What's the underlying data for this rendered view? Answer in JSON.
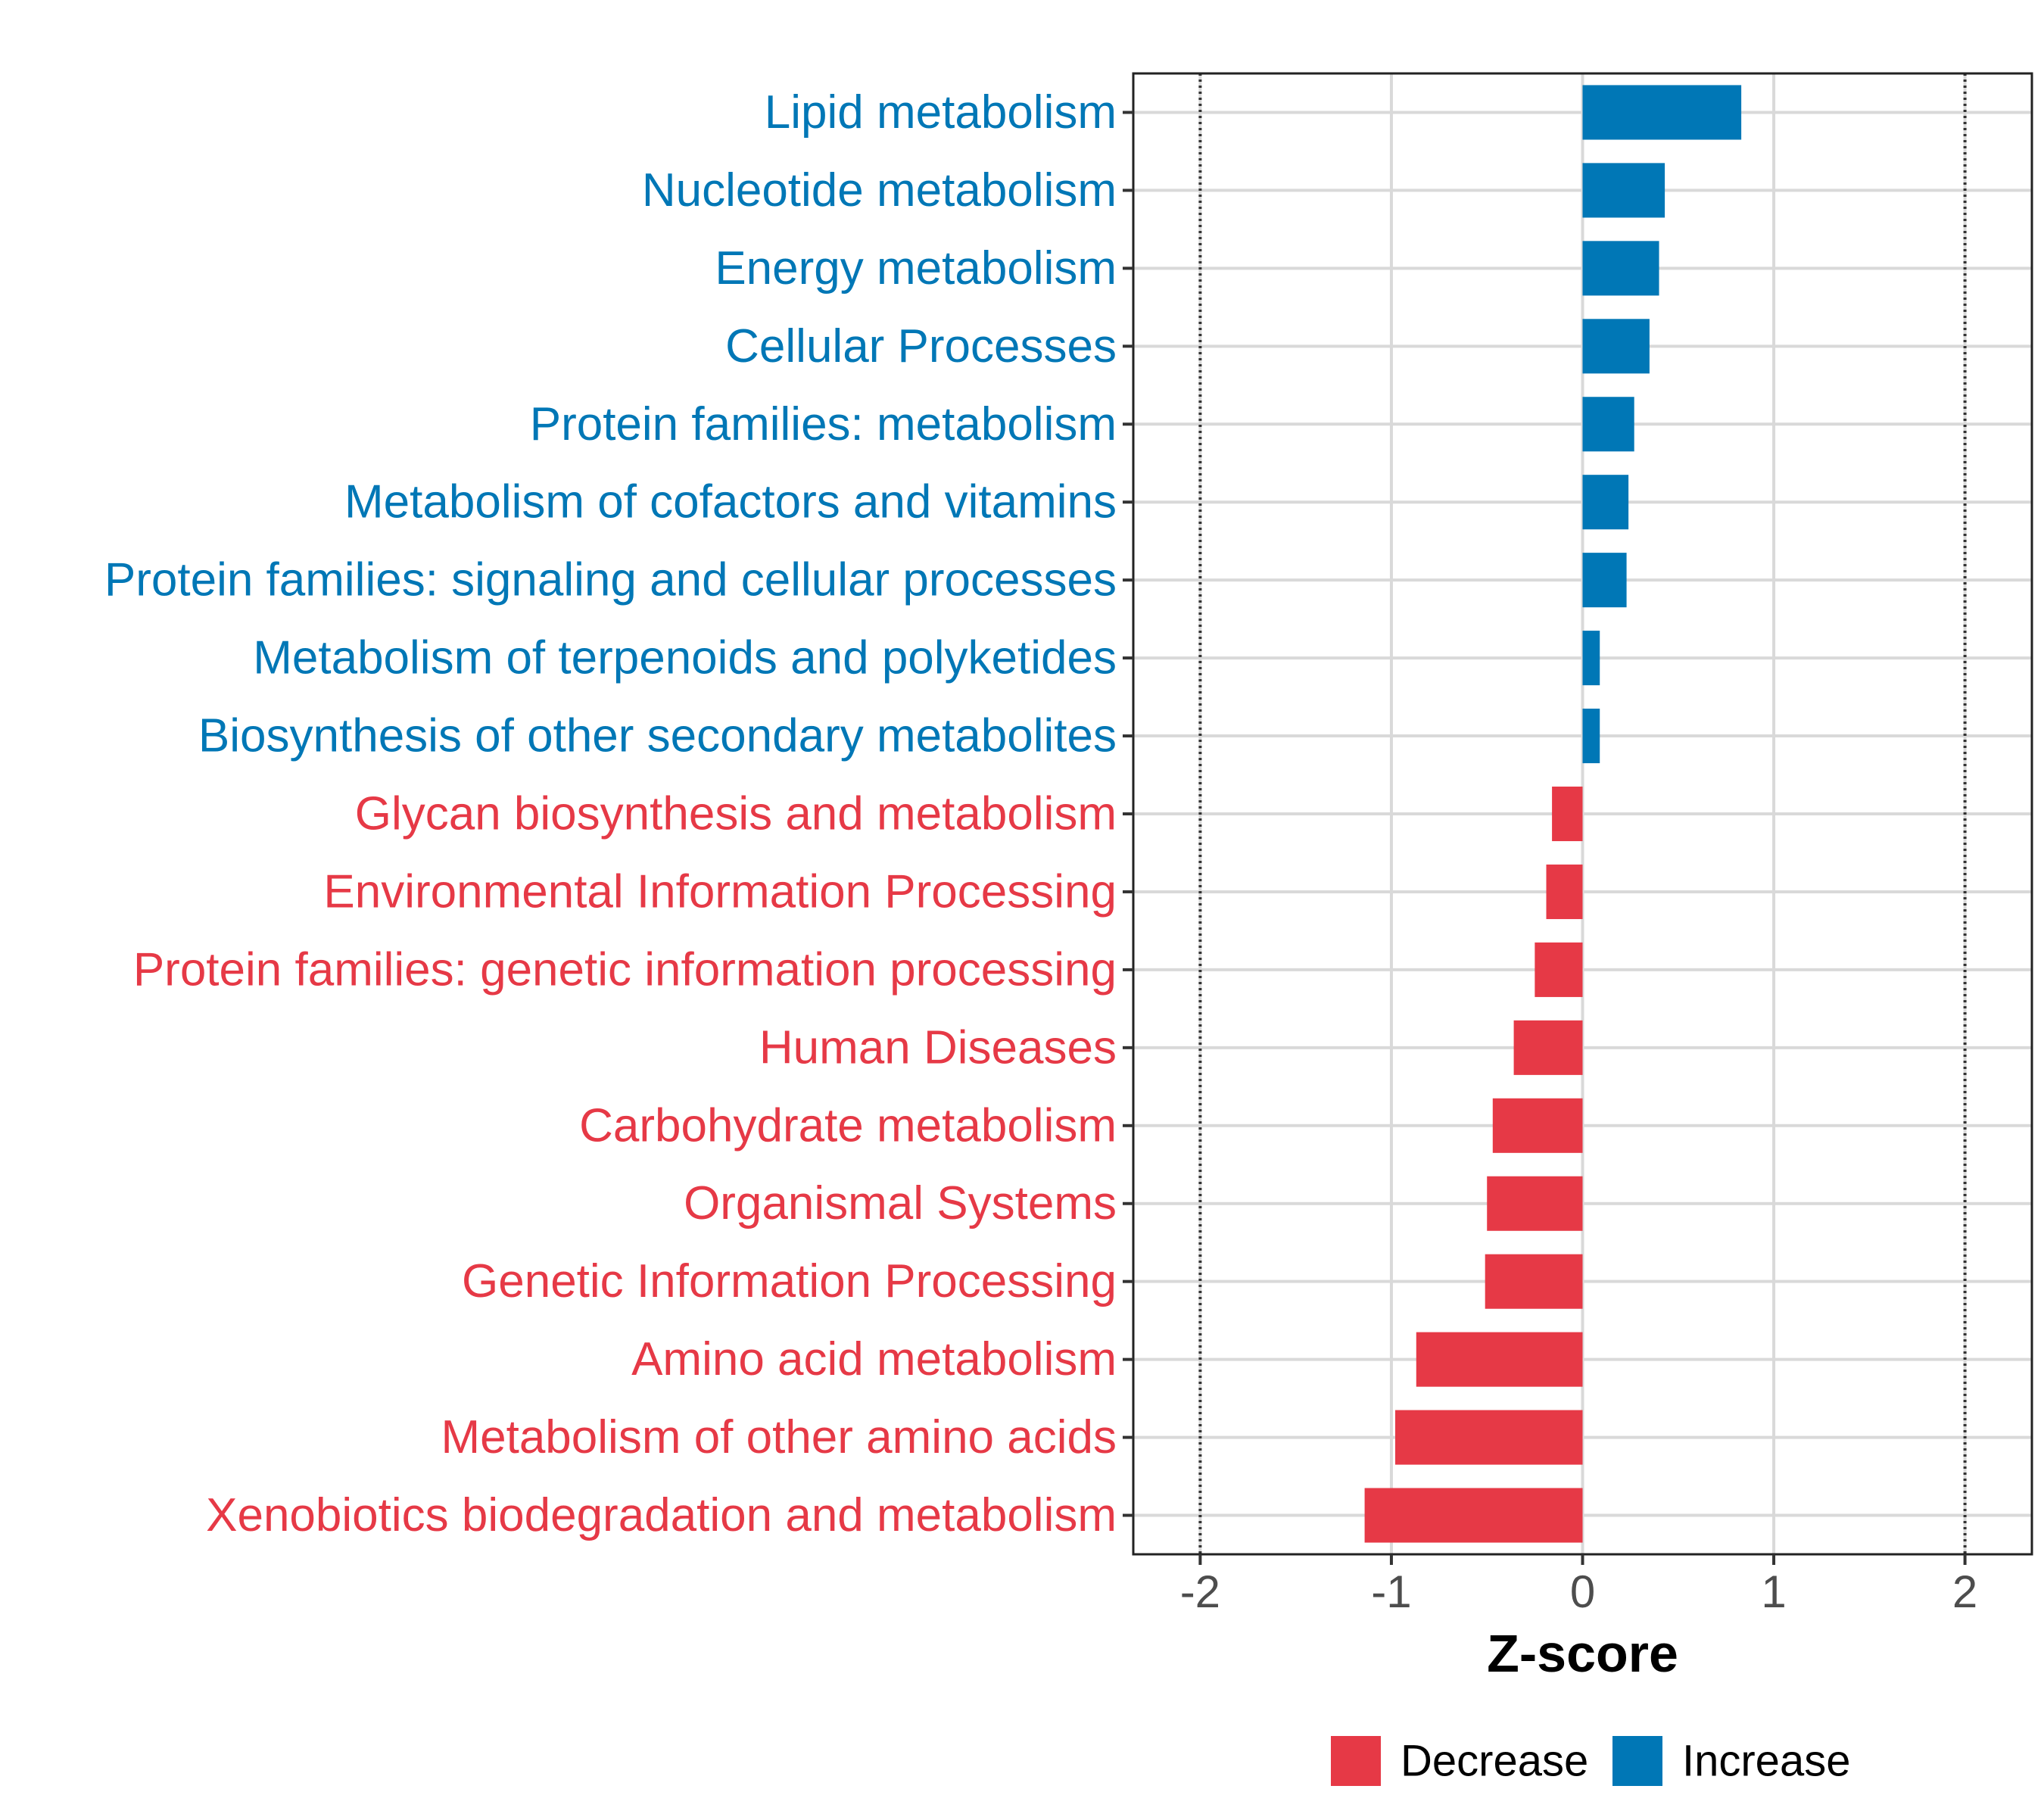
{
  "chart_data": {
    "type": "bar",
    "orientation": "horizontal",
    "title": "",
    "xlabel": "Z-score",
    "ylabel": "",
    "xlim": [
      -2.35,
      2.35
    ],
    "xticks": [
      -2,
      -1,
      0,
      1,
      2
    ],
    "xtick_labels": [
      "-2",
      "-1",
      "0",
      "1",
      "2"
    ],
    "reference_lines": [
      -2,
      2
    ],
    "grid": true,
    "categories": [
      "Lipid metabolism",
      "Nucleotide metabolism",
      "Energy metabolism",
      "Cellular Processes",
      "Protein families: metabolism",
      "Metabolism of cofactors and vitamins",
      "Protein families: signaling and cellular processes",
      "Metabolism of terpenoids and polyketides",
      "Biosynthesis of other secondary metabolites",
      "Glycan biosynthesis and metabolism",
      "Environmental Information Processing",
      "Protein families: genetic information processing",
      "Human Diseases",
      "Carbohydrate metabolism",
      "Organismal Systems",
      "Genetic Information Processing",
      "Amino acid metabolism",
      "Metabolism of other amino acids",
      "Xenobiotics biodegradation and metabolism"
    ],
    "values": [
      0.83,
      0.43,
      0.4,
      0.35,
      0.27,
      0.24,
      0.23,
      0.09,
      0.09,
      -0.16,
      -0.19,
      -0.25,
      -0.36,
      -0.47,
      -0.5,
      -0.51,
      -0.87,
      -0.98,
      -1.14
    ],
    "groups": [
      "Increase",
      "Increase",
      "Increase",
      "Increase",
      "Increase",
      "Increase",
      "Increase",
      "Increase",
      "Increase",
      "Decrease",
      "Decrease",
      "Decrease",
      "Decrease",
      "Decrease",
      "Decrease",
      "Decrease",
      "Decrease",
      "Decrease",
      "Decrease"
    ],
    "legend": {
      "position": "bottom",
      "entries": [
        {
          "name": "Decrease",
          "color": "#E63946"
        },
        {
          "name": "Increase",
          "color": "#0077B6"
        }
      ]
    }
  }
}
